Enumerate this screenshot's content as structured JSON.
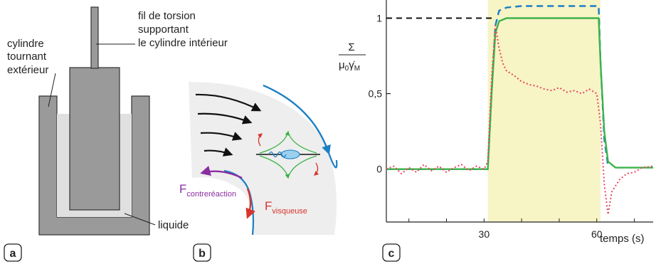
{
  "panel_a": {
    "letter": "a",
    "label_outer_1": "cylindre",
    "label_outer_2": "tournant",
    "label_outer_3": "extérieur",
    "label_wire_1": "fil de torsion",
    "label_wire_2": "supportant",
    "label_wire_3": "le cylindre intérieur",
    "label_liquid": "liquide"
  },
  "panel_b": {
    "letter": "b",
    "force_feedback_main": "F",
    "force_feedback_sub": "contreréaction",
    "force_viscous_main": "F",
    "force_viscous_sub": "visqueuse"
  },
  "panel_c": {
    "letter": "c",
    "ylabel_num": "Σ",
    "ylabel_den_mu": "μ",
    "ylabel_den_0": "0",
    "ylabel_den_gamma": "γ̇",
    "ylabel_den_M": "M",
    "xlabel": "temps (s)"
  },
  "colors": {
    "gray_dark": "#9a9a9a",
    "gray_light": "#e0e0e0",
    "blue": "#1a7fc4",
    "green": "#3bb34a",
    "red_dotted": "#e8455e",
    "purple": "#8a2ea0",
    "red": "#d9342b",
    "highlight": "#f7f4c6"
  },
  "chart_data": {
    "type": "line",
    "xlabel": "temps (s)",
    "ylabel": "Σ / μ0 γ̇M",
    "xlim": [
      4,
      75
    ],
    "ylim": [
      -0.35,
      1.12
    ],
    "x_ticks": [
      30,
      60
    ],
    "x_tick_labels": [
      "30",
      "60"
    ],
    "y_ticks": [
      0,
      0.5,
      1
    ],
    "y_tick_labels": [
      "0",
      "0,5",
      "1"
    ],
    "shaded_interval": [
      31,
      61
    ],
    "reference_line": {
      "style": "black dashed",
      "y": 1,
      "x": [
        4,
        33
      ]
    },
    "series": [
      {
        "color": "#1a7fc4",
        "style": "dashed",
        "x": [
          4,
          31,
          32,
          33,
          34,
          36,
          40,
          50,
          60.5,
          61,
          62,
          63
        ],
        "y": [
          0,
          0,
          0.5,
          0.95,
          1.05,
          1.07,
          1.08,
          1.08,
          1.08,
          0.7,
          0.2,
          0.02
        ]
      },
      {
        "color": "#3bb34a",
        "style": "solid",
        "x": [
          4,
          31,
          32,
          33,
          34,
          36,
          40,
          50,
          60.5,
          61,
          62,
          63,
          65,
          75
        ],
        "y": [
          0,
          0,
          0.5,
          0.9,
          0.98,
          1.0,
          1.0,
          1.0,
          1.0,
          0.7,
          0.25,
          0.05,
          0.01,
          0.01
        ]
      },
      {
        "color": "#e8455e",
        "style": "dotted",
        "x": [
          4,
          6,
          8,
          10,
          12,
          14,
          16,
          18,
          20,
          22,
          24,
          26,
          28,
          30,
          31,
          32,
          33,
          34,
          35,
          36,
          38,
          40,
          42,
          44,
          46,
          48,
          50,
          52,
          54,
          56,
          58,
          60,
          61,
          62,
          63,
          64,
          66,
          68,
          70,
          72,
          75
        ],
        "y": [
          0,
          0.02,
          -0.03,
          0.01,
          -0.02,
          0.03,
          -0.01,
          0.02,
          -0.02,
          0.01,
          0.03,
          -0.01,
          0.02,
          0.0,
          0.05,
          0.6,
          0.95,
          0.8,
          0.7,
          0.65,
          0.62,
          0.58,
          0.56,
          0.55,
          0.53,
          0.52,
          0.54,
          0.51,
          0.52,
          0.5,
          0.53,
          0.5,
          0.3,
          -0.1,
          -0.3,
          -0.15,
          -0.07,
          -0.03,
          -0.02,
          0.01,
          0.02
        ]
      }
    ]
  }
}
